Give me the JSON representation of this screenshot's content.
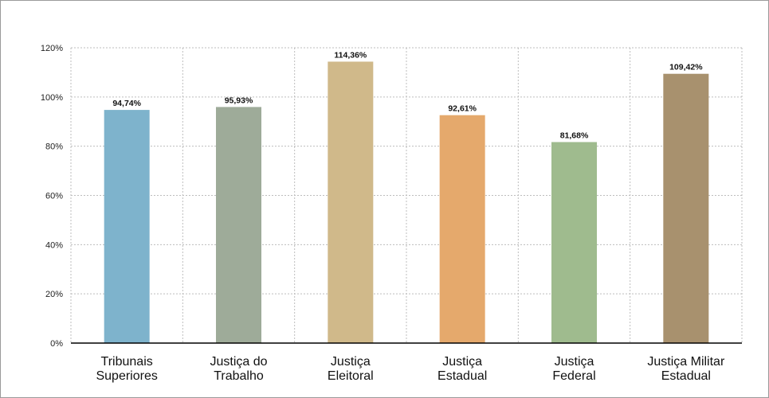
{
  "chart_data": {
    "type": "bar",
    "categories": [
      [
        "Tribunais",
        "Superiores"
      ],
      [
        "Justiça do",
        "Trabalho"
      ],
      [
        "Justiça",
        "Eleitoral"
      ],
      [
        "Justiça",
        "Estadual"
      ],
      [
        "Justiça",
        "Federal"
      ],
      [
        "Justiça Militar",
        "Estadual"
      ]
    ],
    "values": [
      94.74,
      95.93,
      114.36,
      92.61,
      81.68,
      109.42
    ],
    "data_labels": [
      "94,74%",
      "95,93%",
      "114,36%",
      "92,61%",
      "81,68%",
      "109,42%"
    ],
    "colors": [
      "#7eb3cc",
      "#9eab99",
      "#d0b98a",
      "#e5a96c",
      "#9fbb8e",
      "#a8916e"
    ],
    "ylim": [
      0,
      120
    ],
    "yticks": [
      {
        "value": 0,
        "label": "0%"
      },
      {
        "value": 20,
        "label": "20%"
      },
      {
        "value": 40,
        "label": "40%"
      },
      {
        "value": 60,
        "label": "60%"
      },
      {
        "value": 80,
        "label": "80%"
      },
      {
        "value": 100,
        "label": "100%"
      },
      {
        "value": 120,
        "label": "120%"
      }
    ],
    "grid": true,
    "title": "",
    "xlabel": "",
    "ylabel": ""
  }
}
